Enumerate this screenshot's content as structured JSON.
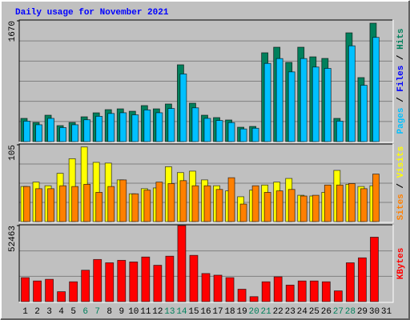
{
  "chart_data": [
    {
      "type": "bar",
      "title": "Daily usage for November 2021",
      "ylim": [
        0,
        1670
      ],
      "yticks": [
        1670
      ],
      "legend": [
        "Pages",
        "Files",
        "Hits"
      ],
      "legend_colors": [
        "#00c0ff",
        "#0000ff",
        "#00805c"
      ],
      "legend_separator": " / ",
      "series": [
        {
          "name": "Hits",
          "color": "#00805c",
          "values": [
            321,
            265,
            365,
            221,
            265,
            343,
            398,
            442,
            453,
            420,
            498,
            453,
            520,
            1062,
            531,
            365,
            332,
            299,
            199,
            210,
            1228,
            1305,
            1095,
            1305,
            1172,
            1150,
            321,
            1504,
            885,
            1637,
            0
          ]
        },
        {
          "name": "Pages",
          "color": "#00c0ff",
          "values": [
            283,
            233,
            321,
            194,
            233,
            302,
            350,
            389,
            399,
            370,
            438,
            399,
            458,
            935,
            467,
            321,
            292,
            263,
            175,
            185,
            1081,
            1148,
            964,
            1148,
            1031,
            1012,
            283,
            1324,
            779,
            1441,
            0
          ]
        }
      ]
    },
    {
      "type": "bar",
      "ylim": [
        0,
        105
      ],
      "yticks": [
        105
      ],
      "legend": [
        "Sites",
        "Visits"
      ],
      "legend_colors": [
        "#ff8000",
        "#ffff00"
      ],
      "legend_separator": " / ",
      "series": [
        {
          "name": "Visits",
          "color": "#ffff00",
          "values": [
            48,
            54,
            49,
            66,
            86,
            102,
            81,
            80,
            57,
            38,
            45,
            46,
            75,
            67,
            69,
            57,
            49,
            42,
            34,
            43,
            50,
            54,
            59,
            36,
            35,
            40,
            70,
            51,
            48,
            49,
            0
          ]
        },
        {
          "name": "Sites",
          "color": "#ff8000",
          "values": [
            48,
            45,
            45,
            49,
            48,
            51,
            40,
            48,
            57,
            38,
            43,
            54,
            52,
            56,
            49,
            49,
            44,
            60,
            24,
            49,
            40,
            42,
            44,
            35,
            36,
            50,
            50,
            52,
            45,
            65,
            0
          ]
        }
      ]
    },
    {
      "type": "bar",
      "ylim": [
        0,
        52463
      ],
      "yticks": [
        52463
      ],
      "legend": [
        "KBytes"
      ],
      "legend_colors": [
        "#ff0000"
      ],
      "legend_separator": " / ",
      "categories": [
        "1",
        "2",
        "3",
        "4",
        "5",
        "6",
        "7",
        "8",
        "9",
        "10",
        "11",
        "12",
        "13",
        "14",
        "15",
        "16",
        "17",
        "18",
        "19",
        "20",
        "21",
        "22",
        "23",
        "24",
        "25",
        "26",
        "27",
        "28",
        "29",
        "30",
        "31"
      ],
      "category_colors": [
        "#000000",
        "#000000",
        "#000000",
        "#000000",
        "#000000",
        "#00805c",
        "#00805c",
        "#000000",
        "#000000",
        "#000000",
        "#000000",
        "#000000",
        "#00805c",
        "#00805c",
        "#000000",
        "#000000",
        "#000000",
        "#000000",
        "#000000",
        "#00805c",
        "#00805c",
        "#000000",
        "#000000",
        "#000000",
        "#000000",
        "#000000",
        "#00805c",
        "#00805c",
        "#000000",
        "#000000",
        "#000000"
      ],
      "series": [
        {
          "name": "KBytes",
          "color": "#ff0000",
          "values": [
            16537,
            14256,
            15397,
            6843,
            13686,
            21669,
            29082,
            26801,
            28512,
            27372,
            30793,
            25091,
            31364,
            52463,
            31934,
            19388,
            18248,
            16537,
            8554,
            3421,
            13686,
            17107,
            11405,
            14256,
            14256,
            13686,
            7413,
            26801,
            30223,
            44479,
            0
          ]
        }
      ]
    }
  ]
}
